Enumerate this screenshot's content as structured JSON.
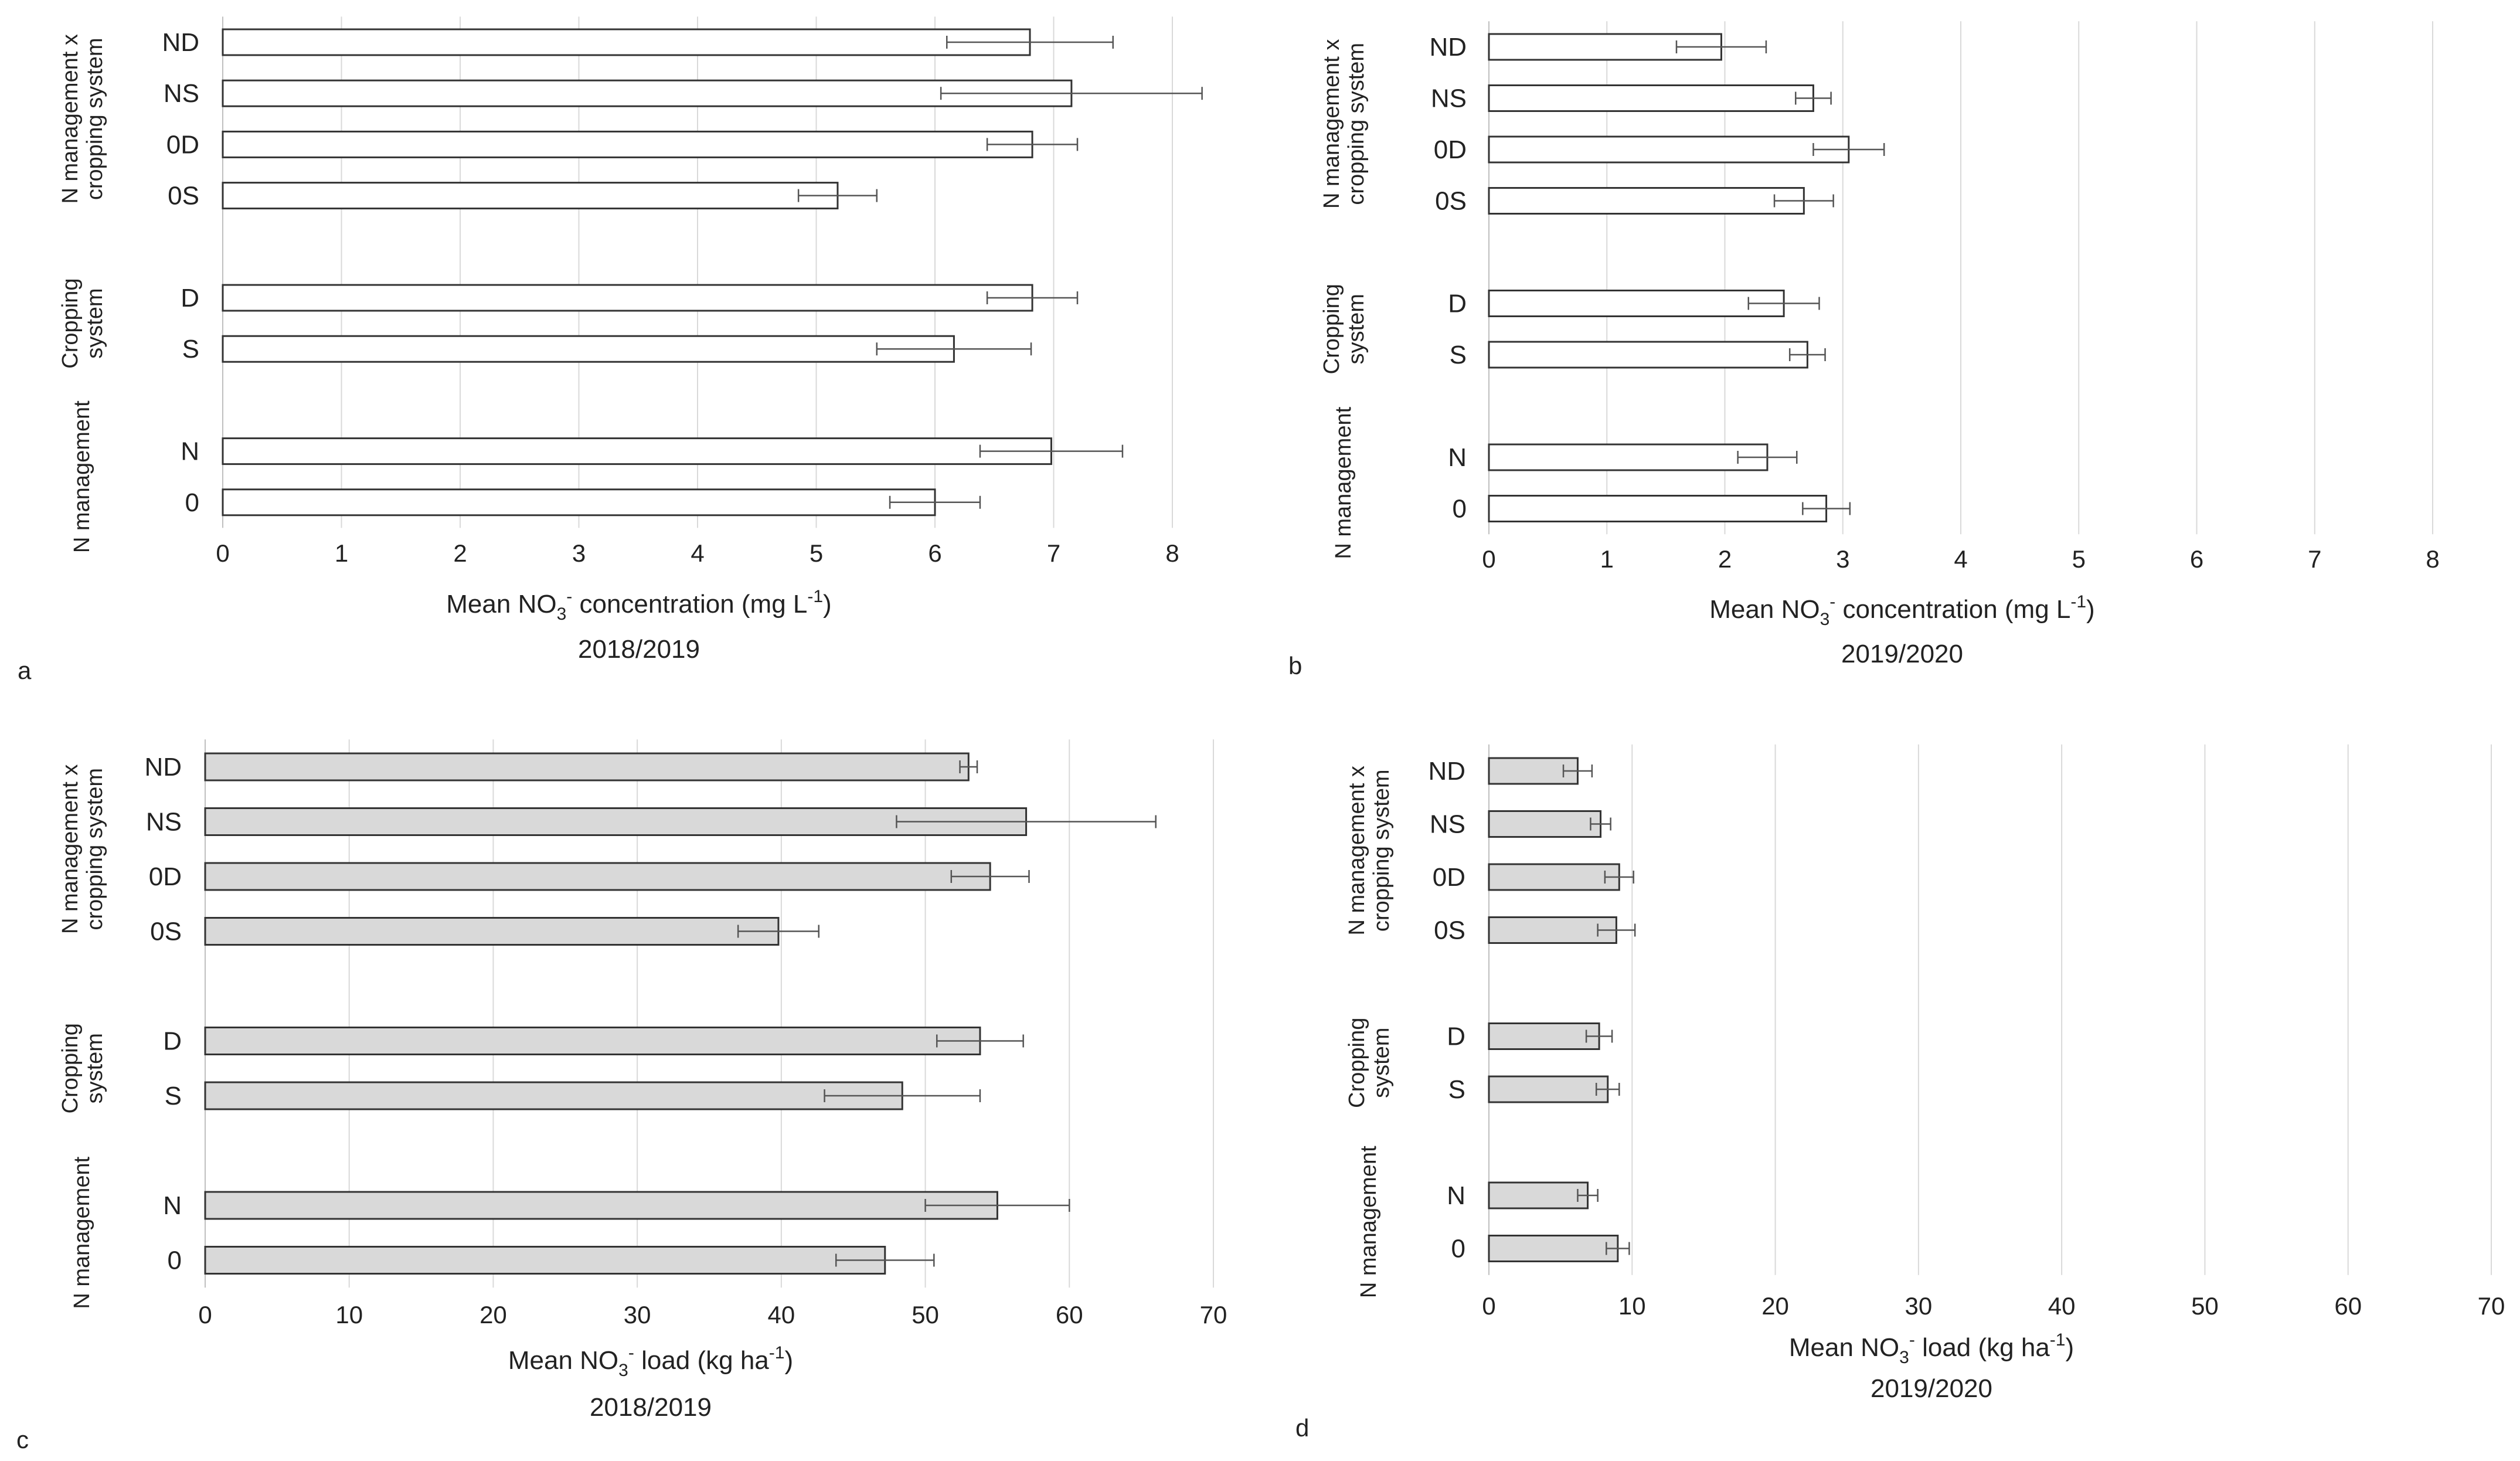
{
  "chart_data": [
    {
      "panel": "a",
      "type": "bar",
      "orientation": "horizontal",
      "xlabel_prefix": "Mean NO",
      "xlabel_sub": "3",
      "xlabel_sup": "-",
      "xlabel_suffix": " concentration  (mg L",
      "xlabel_sup2": "-1",
      "xlabel_end": ")",
      "year": "2018/2019",
      "xlim": [
        0,
        8
      ],
      "xticks": [
        0,
        1,
        2,
        3,
        4,
        5,
        6,
        7,
        8
      ],
      "bar_color": "#ffffff",
      "groups": [
        {
          "label": "N management x cropping system",
          "categories": [
            "ND",
            "NS",
            "0D",
            "0S"
          ],
          "values": [
            6.8,
            7.15,
            6.82,
            5.18
          ],
          "errors": [
            0.7,
            1.1,
            0.38,
            0.33
          ]
        },
        {
          "label": "Cropping system",
          "categories": [
            "D",
            "S"
          ],
          "values": [
            6.82,
            6.16
          ],
          "errors": [
            0.38,
            0.65
          ]
        },
        {
          "label": "N management",
          "categories": [
            "N",
            "0"
          ],
          "values": [
            6.98,
            6.0
          ],
          "errors": [
            0.6,
            0.38
          ]
        }
      ]
    },
    {
      "panel": "b",
      "type": "bar",
      "orientation": "horizontal",
      "xlabel_prefix": "Mean  NO",
      "xlabel_sub": "3",
      "xlabel_sup": "-",
      "xlabel_suffix": " concentration  (mg L",
      "xlabel_sup2": "-1",
      "xlabel_end": ")",
      "year": "2019/2020",
      "xlim": [
        0,
        8
      ],
      "xticks": [
        0,
        1,
        2,
        3,
        4,
        5,
        6,
        7,
        8
      ],
      "bar_color": "#ffffff",
      "groups": [
        {
          "label": "N management x cropping system",
          "categories": [
            "ND",
            "NS",
            "0D",
            "0S"
          ],
          "values": [
            1.97,
            2.75,
            3.05,
            2.67
          ],
          "errors": [
            0.38,
            0.15,
            0.3,
            0.25
          ]
        },
        {
          "label": "Cropping system",
          "categories": [
            "D",
            "S"
          ],
          "values": [
            2.5,
            2.7
          ],
          "errors": [
            0.3,
            0.15
          ]
        },
        {
          "label": "N management",
          "categories": [
            "N",
            "0"
          ],
          "values": [
            2.36,
            2.86
          ],
          "errors": [
            0.25,
            0.2
          ]
        }
      ]
    },
    {
      "panel": "c",
      "type": "bar",
      "orientation": "horizontal",
      "xlabel_prefix": "Mean  NO",
      "xlabel_sub": "3",
      "xlabel_sup": "-",
      "xlabel_suffix": " load (kg ha",
      "xlabel_sup2": "-1",
      "xlabel_end": ")",
      "year": "2018/2019",
      "xlim": [
        0,
        70
      ],
      "xticks": [
        0,
        10,
        20,
        30,
        40,
        50,
        60,
        70
      ],
      "bar_color": "#d9d9d9",
      "groups": [
        {
          "label": "N management x cropping system",
          "categories": [
            "ND",
            "NS",
            "0D",
            "0S"
          ],
          "values": [
            53,
            57,
            54.5,
            39.8
          ],
          "errors": [
            0.6,
            9,
            2.7,
            2.8
          ]
        },
        {
          "label": "Cropping system",
          "categories": [
            "D",
            "S"
          ],
          "values": [
            53.8,
            48.4
          ],
          "errors": [
            3,
            5.4
          ]
        },
        {
          "label": "N management",
          "categories": [
            "N",
            "0"
          ],
          "values": [
            55,
            47.2
          ],
          "errors": [
            5,
            3.4
          ]
        }
      ]
    },
    {
      "panel": "d",
      "type": "bar",
      "orientation": "horizontal",
      "xlabel_prefix": "Mean  NO",
      "xlabel_sub": "3",
      "xlabel_sup": "-",
      "xlabel_suffix": " load (kg ha",
      "xlabel_sup2": "-1",
      "xlabel_end": ")",
      "year": "2019/2020",
      "xlim": [
        0,
        70
      ],
      "xticks": [
        0,
        10,
        20,
        30,
        40,
        50,
        60,
        70
      ],
      "bar_color": "#d9d9d9",
      "groups": [
        {
          "label": "N management x cropping system",
          "categories": [
            "ND",
            "NS",
            "0D",
            "0S"
          ],
          "values": [
            6.2,
            7.8,
            9.1,
            8.9
          ],
          "errors": [
            1,
            0.7,
            1,
            1.3
          ]
        },
        {
          "label": "Cropping system",
          "categories": [
            "D",
            "S"
          ],
          "values": [
            7.7,
            8.3
          ],
          "errors": [
            0.9,
            0.8
          ]
        },
        {
          "label": "N management",
          "categories": [
            "N",
            "0"
          ],
          "values": [
            6.9,
            9.0
          ],
          "errors": [
            0.7,
            0.8
          ]
        }
      ]
    }
  ]
}
